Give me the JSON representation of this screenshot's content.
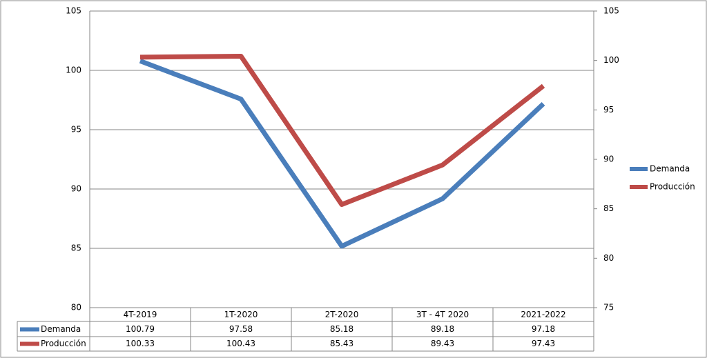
{
  "chart_data": {
    "type": "line",
    "categories": [
      "4T-2019",
      "1T-2020",
      "2T-2020",
      "3T - 4T 2020",
      "2021-2022"
    ],
    "series": [
      {
        "name": "Demanda",
        "color": "#4a7ebb",
        "values": [
          100.79,
          97.58,
          85.18,
          89.18,
          97.18
        ]
      },
      {
        "name": "Producción",
        "color": "#be4b48",
        "values": [
          100.33,
          100.43,
          85.43,
          89.43,
          97.43
        ],
        "axis": "y2"
      }
    ],
    "ylim": [
      80,
      105
    ],
    "yticks": [
      80,
      85,
      90,
      95,
      100,
      105
    ],
    "y2lim": [
      75,
      105
    ],
    "y2ticks": [
      75,
      80,
      85,
      90,
      95,
      100,
      105
    ],
    "grid": true,
    "legend": "right",
    "data_table": true
  }
}
